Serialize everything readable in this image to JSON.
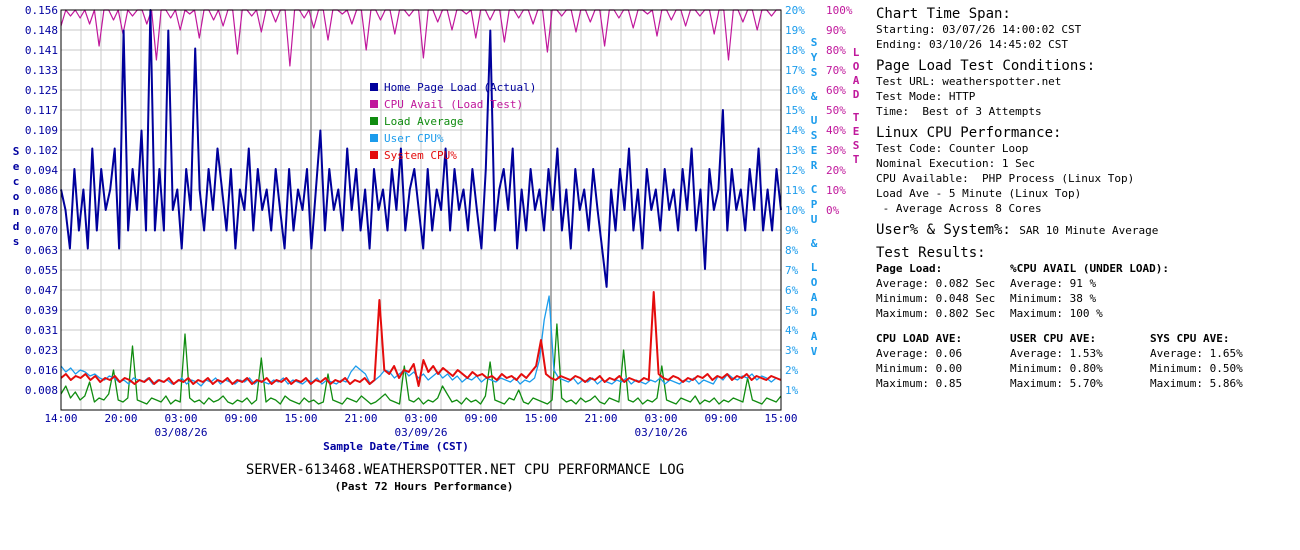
{
  "chart_data": {
    "type": "line",
    "title": "SERVER-613468.WEATHERSPOTTER.NET CPU PERFORMANCE LOG",
    "subtitle": "(Past 72 Hours Performance)",
    "xlabel": "Sample Date/Time (CST)",
    "ylabel": "Seconds",
    "ylabel_right_1": "SYS & USER CPU & LOAD AV",
    "ylabel_right_2": "LOAD TEST",
    "x_tick_labels": [
      "14:00",
      "20:00",
      "03:00",
      "09:00",
      "15:00",
      "21:00",
      "03:00",
      "09:00",
      "15:00",
      "21:00",
      "03:00",
      "09:00",
      "15:00"
    ],
    "x_date_labels": [
      "03/08/26",
      "03/09/26",
      "03/10/26"
    ],
    "y_left_ticks": [
      "0.156",
      "0.148",
      "0.141",
      "0.133",
      "0.125",
      "0.117",
      "0.109",
      "0.102",
      "0.094",
      "0.086",
      "0.078",
      "0.070",
      "0.063",
      "0.055",
      "0.047",
      "0.039",
      "0.031",
      "0.023",
      "0.016",
      "0.008"
    ],
    "y_right_ticks": [
      "20%",
      "19%",
      "18%",
      "17%",
      "16%",
      "15%",
      "14%",
      "13%",
      "12%",
      "11%",
      "10%",
      "9%",
      "8%",
      "7%",
      "6%",
      "5%",
      "4%",
      "3%",
      "2%",
      "1%"
    ],
    "y_load_ticks": [
      "100%",
      "90%",
      "80%",
      "70%",
      "60%",
      "50%",
      "40%",
      "30%",
      "20%",
      "10%",
      "0%"
    ],
    "ylim_left": [
      0,
      0.156
    ],
    "ylim_right": [
      0,
      20
    ],
    "ylim_load": [
      0,
      100
    ],
    "legend": [
      {
        "name": "Home Page Load (Actual)",
        "color": "#00009c"
      },
      {
        "name": "CPU Avail (Load Test)",
        "color": "#c0189c"
      },
      {
        "name": "Load Average",
        "color": "#108c10"
      },
      {
        "name": "User CPU%",
        "color": "#1c9cec"
      },
      {
        "name": "System CPU%",
        "color": "#e40c0c"
      }
    ],
    "series": [
      {
        "name": "Home Page Load (Actual)",
        "axis": "seconds",
        "color": "#00009c",
        "values": [
          0.086,
          0.078,
          0.063,
          0.094,
          0.07,
          0.086,
          0.063,
          0.102,
          0.07,
          0.094,
          0.078,
          0.086,
          0.102,
          0.063,
          0.148,
          0.07,
          0.094,
          0.078,
          0.109,
          0.07,
          0.156,
          0.07,
          0.094,
          0.07,
          0.148,
          0.078,
          0.086,
          0.063,
          0.094,
          0.078,
          0.141,
          0.086,
          0.07,
          0.094,
          0.078,
          0.102,
          0.086,
          0.07,
          0.094,
          0.063,
          0.086,
          0.078,
          0.102,
          0.07,
          0.094,
          0.078,
          0.086,
          0.07,
          0.094,
          0.078,
          0.063,
          0.094,
          0.07,
          0.086,
          0.078,
          0.094,
          0.063,
          0.086,
          0.109,
          0.07,
          0.094,
          0.078,
          0.086,
          0.07,
          0.102,
          0.078,
          0.094,
          0.07,
          0.086,
          0.063,
          0.094,
          0.078,
          0.086,
          0.07,
          0.094,
          0.078,
          0.102,
          0.07,
          0.086,
          0.094,
          0.078,
          0.063,
          0.094,
          0.07,
          0.086,
          0.078,
          0.102,
          0.07,
          0.094,
          0.078,
          0.086,
          0.07,
          0.094,
          0.078,
          0.063,
          0.094,
          0.148,
          0.07,
          0.086,
          0.094,
          0.078,
          0.102,
          0.063,
          0.086,
          0.07,
          0.094,
          0.078,
          0.086,
          0.07,
          0.094,
          0.078,
          0.102,
          0.07,
          0.086,
          0.063,
          0.094,
          0.078,
          0.086,
          0.07,
          0.094,
          0.078,
          0.063,
          0.048,
          0.086,
          0.07,
          0.094,
          0.078,
          0.102,
          0.07,
          0.086,
          0.063,
          0.094,
          0.078,
          0.086,
          0.07,
          0.094,
          0.078,
          0.086,
          0.07,
          0.094,
          0.078,
          0.102,
          0.07,
          0.086,
          0.055,
          0.094,
          0.078,
          0.086,
          0.117,
          0.07,
          0.094,
          0.078,
          0.086,
          0.07,
          0.094,
          0.078,
          0.102,
          0.07,
          0.086,
          0.07,
          0.094,
          0.078
        ]
      },
      {
        "name": "CPU Avail (Load Test)",
        "axis": "load",
        "color": "#c0189c",
        "values": [
          92,
          100,
          97,
          100,
          96,
          100,
          93,
          100,
          82,
          100,
          100,
          95,
          100,
          88,
          100,
          97,
          100,
          100,
          93,
          100,
          75,
          100,
          100,
          96,
          100,
          90,
          100,
          98,
          100,
          86,
          100,
          100,
          95,
          100,
          92,
          100,
          100,
          78,
          100,
          100,
          97,
          100,
          89,
          100,
          100,
          94,
          100,
          100,
          72,
          100,
          100,
          96,
          100,
          91,
          100,
          100,
          85,
          100,
          100,
          98,
          100,
          93,
          100,
          100,
          80,
          100,
          100,
          95,
          100,
          100,
          88,
          100,
          100,
          97,
          100,
          100,
          76,
          100,
          100,
          94,
          100,
          100,
          90,
          100,
          100,
          98,
          100,
          86,
          100,
          100,
          95,
          100,
          100,
          84,
          100,
          100,
          96,
          100,
          100,
          93,
          100,
          100,
          79,
          100,
          100,
          97,
          100,
          100,
          89,
          100,
          100,
          94,
          100,
          100,
          82,
          100,
          100,
          96,
          100,
          100,
          91,
          100,
          100,
          98,
          100,
          87,
          100,
          100,
          95,
          100,
          100,
          92,
          100,
          100,
          97,
          100,
          100,
          88,
          100,
          100,
          75,
          100,
          100,
          94,
          100,
          100,
          90,
          100,
          100,
          97,
          100,
          100
        ]
      },
      {
        "name": "Load Average",
        "axis": "percent",
        "color": "#108c10",
        "values": [
          0.8,
          1.2,
          0.6,
          0.9,
          0.5,
          0.7,
          1.4,
          0.4,
          0.6,
          0.5,
          0.8,
          2.0,
          0.5,
          0.4,
          0.6,
          3.2,
          0.5,
          0.4,
          0.3,
          0.6,
          0.5,
          0.4,
          0.7,
          0.3,
          0.5,
          0.4,
          3.8,
          0.6,
          0.4,
          0.5,
          0.3,
          0.6,
          0.4,
          0.5,
          0.7,
          0.4,
          0.3,
          0.5,
          0.4,
          0.6,
          0.3,
          0.5,
          2.6,
          0.4,
          0.6,
          0.5,
          0.3,
          0.7,
          0.5,
          0.4,
          0.3,
          0.6,
          0.4,
          0.5,
          0.3,
          0.4,
          1.8,
          0.5,
          0.4,
          0.3,
          0.6,
          0.5,
          0.4,
          0.7,
          0.5,
          0.3,
          0.4,
          0.6,
          0.8,
          0.5,
          0.4,
          0.3,
          2.2,
          0.5,
          0.4,
          0.6,
          0.3,
          0.5,
          0.4,
          0.6,
          1.2,
          0.8,
          0.4,
          0.5,
          0.3,
          0.6,
          0.4,
          0.5,
          0.3,
          0.7,
          2.4,
          0.5,
          0.4,
          0.3,
          0.6,
          0.5,
          1.0,
          0.4,
          0.3,
          0.6,
          0.5,
          0.4,
          0.3,
          0.5,
          4.3,
          0.6,
          0.4,
          0.5,
          0.3,
          0.6,
          0.4,
          0.5,
          0.7,
          0.4,
          0.3,
          0.6,
          0.5,
          0.4,
          3.0,
          0.5,
          0.4,
          0.6,
          0.3,
          0.5,
          0.4,
          0.6,
          2.2,
          0.5,
          0.4,
          0.3,
          0.6,
          0.5,
          0.4,
          0.7,
          0.3,
          0.5,
          0.4,
          0.6,
          0.3,
          0.5,
          0.4,
          0.6,
          0.5,
          0.4,
          1.6,
          0.5,
          0.4,
          0.3,
          0.6,
          0.5,
          0.4,
          0.7
        ]
      },
      {
        "name": "User CPU%",
        "axis": "percent",
        "color": "#1c9cec",
        "values": [
          2.2,
          1.9,
          2.1,
          1.8,
          2.0,
          1.9,
          1.7,
          1.8,
          1.6,
          1.5,
          1.7,
          1.6,
          1.4,
          1.5,
          1.3,
          1.6,
          1.5,
          1.4,
          1.6,
          1.3,
          1.5,
          1.4,
          1.5,
          1.3,
          1.4,
          1.6,
          1.3,
          1.5,
          1.4,
          1.2,
          1.5,
          1.4,
          1.6,
          1.3,
          1.5,
          1.4,
          1.3,
          1.5,
          1.4,
          1.6,
          1.3,
          1.5,
          1.4,
          1.3,
          1.5,
          1.4,
          1.6,
          1.3,
          1.5,
          1.4,
          1.3,
          1.5,
          1.4,
          1.6,
          1.3,
          1.5,
          1.4,
          1.3,
          1.5,
          1.4,
          1.9,
          2.2,
          2.0,
          1.8,
          1.3,
          1.5,
          1.7,
          2.0,
          1.9,
          1.6,
          1.8,
          2.0,
          1.7,
          1.9,
          1.6,
          1.8,
          1.5,
          1.7,
          1.9,
          1.6,
          1.8,
          1.5,
          1.7,
          1.4,
          1.6,
          1.5,
          1.7,
          1.4,
          1.6,
          1.5,
          1.4,
          1.6,
          1.5,
          1.4,
          1.6,
          1.3,
          1.5,
          1.4,
          1.6,
          2.5,
          4.5,
          5.7,
          2.0,
          1.6,
          1.5,
          1.4,
          1.6,
          1.3,
          1.5,
          1.4,
          1.6,
          1.3,
          1.5,
          1.4,
          1.3,
          1.5,
          1.4,
          1.6,
          1.3,
          1.5,
          1.4,
          1.3,
          1.5,
          1.4,
          1.6,
          1.3,
          1.5,
          1.4,
          1.3,
          1.5,
          1.4,
          1.6,
          1.3,
          1.5,
          1.4,
          1.3,
          1.7,
          1.5,
          1.8,
          1.6,
          1.5,
          1.7,
          1.6,
          1.8,
          1.5,
          1.7,
          1.6,
          1.4,
          1.6,
          1.5
        ]
      },
      {
        "name": "System CPU%",
        "axis": "percent",
        "color": "#e40c0c",
        "values": [
          1.6,
          1.8,
          1.5,
          1.7,
          1.6,
          1.8,
          1.5,
          1.7,
          1.4,
          1.6,
          1.5,
          1.7,
          1.4,
          1.6,
          1.5,
          1.3,
          1.5,
          1.4,
          1.6,
          1.3,
          1.5,
          1.4,
          1.6,
          1.3,
          1.5,
          1.4,
          1.6,
          1.3,
          1.5,
          1.4,
          1.6,
          1.3,
          1.5,
          1.4,
          1.6,
          1.3,
          1.5,
          1.4,
          1.6,
          1.3,
          1.5,
          1.4,
          1.6,
          1.3,
          1.5,
          1.4,
          1.6,
          1.3,
          1.5,
          1.4,
          1.6,
          1.3,
          1.5,
          1.4,
          1.6,
          1.3,
          1.5,
          1.4,
          1.6,
          1.3,
          1.5,
          1.4,
          1.6,
          1.3,
          1.5,
          5.5,
          2.0,
          1.8,
          2.2,
          1.6,
          2.0,
          1.9,
          2.3,
          1.2,
          2.5,
          1.9,
          2.2,
          1.8,
          2.1,
          1.9,
          1.7,
          2.0,
          1.8,
          1.6,
          1.9,
          1.7,
          1.8,
          1.6,
          1.7,
          1.5,
          1.8,
          1.6,
          1.7,
          1.5,
          1.8,
          1.6,
          1.9,
          2.2,
          3.5,
          1.8,
          1.6,
          1.5,
          1.7,
          1.6,
          1.5,
          1.7,
          1.6,
          1.4,
          1.6,
          1.5,
          1.7,
          1.4,
          1.6,
          1.5,
          1.7,
          1.4,
          1.6,
          1.5,
          1.4,
          1.6,
          1.5,
          5.9,
          1.8,
          1.6,
          1.5,
          1.7,
          1.6,
          1.4,
          1.6,
          1.5,
          1.7,
          1.6,
          1.8,
          1.5,
          1.7,
          1.6,
          1.8,
          1.5,
          1.7,
          1.6,
          1.8,
          1.5,
          1.7,
          1.6,
          1.5,
          1.7,
          1.6,
          1.5
        ]
      }
    ]
  },
  "side": {
    "span_title": "Chart Time Span:",
    "span_start": "Starting: 03/07/26 14:00:02 CST",
    "span_end": "Ending: 03/10/26 14:45:02 CST",
    "cond_title": "Page Load Test Conditions:",
    "cond_url": "Test URL: weatherspotter.net",
    "cond_mode": "Test Mode: HTTP",
    "cond_time": "Time:  Best of 3 Attempts",
    "cpu_title": "Linux CPU Performance:",
    "cpu_code": "Test Code: Counter Loop",
    "cpu_exec": "Nominal Execution: 1 Sec",
    "cpu_avail": "CPU Available:  PHP Process (Linux Top)",
    "cpu_load": "Load Ave - 5 Minute (Linux Top)",
    "cpu_cores": " - Average Across 8 Cores",
    "us_title": "User% & System%:",
    "us_value": "SAR 10 Minute Average",
    "res_title": "Test Results:",
    "page_load_hdr": "Page Load:",
    "page_load_avg": "Average: 0.082 Sec",
    "page_load_min": "Minimum: 0.048 Sec",
    "page_load_max": "Maximum: 0.802 Sec",
    "cpu_avail_hdr": "%CPU AVAIL (UNDER LOAD):",
    "cpu_avail_avg": "Average: 91 %",
    "cpu_avail_min": "Minimum: 38 %",
    "cpu_avail_max": "Maximum: 100 %",
    "load_hdr": "CPU LOAD AVE:",
    "load_avg": "Average: 0.06",
    "load_min": "Minimum: 0.00",
    "load_max": "Maximum: 0.85",
    "user_hdr": "USER CPU AVE:",
    "user_avg": "Average: 1.53%",
    "user_min": "Minimum: 0.80%",
    "user_max": "Maximum: 5.70%",
    "sys_hdr": "SYS CPU AVE:",
    "sys_avg": "Average: 1.65%",
    "sys_min": "Minimum: 0.50%",
    "sys_max": "Maximum: 5.86%"
  }
}
